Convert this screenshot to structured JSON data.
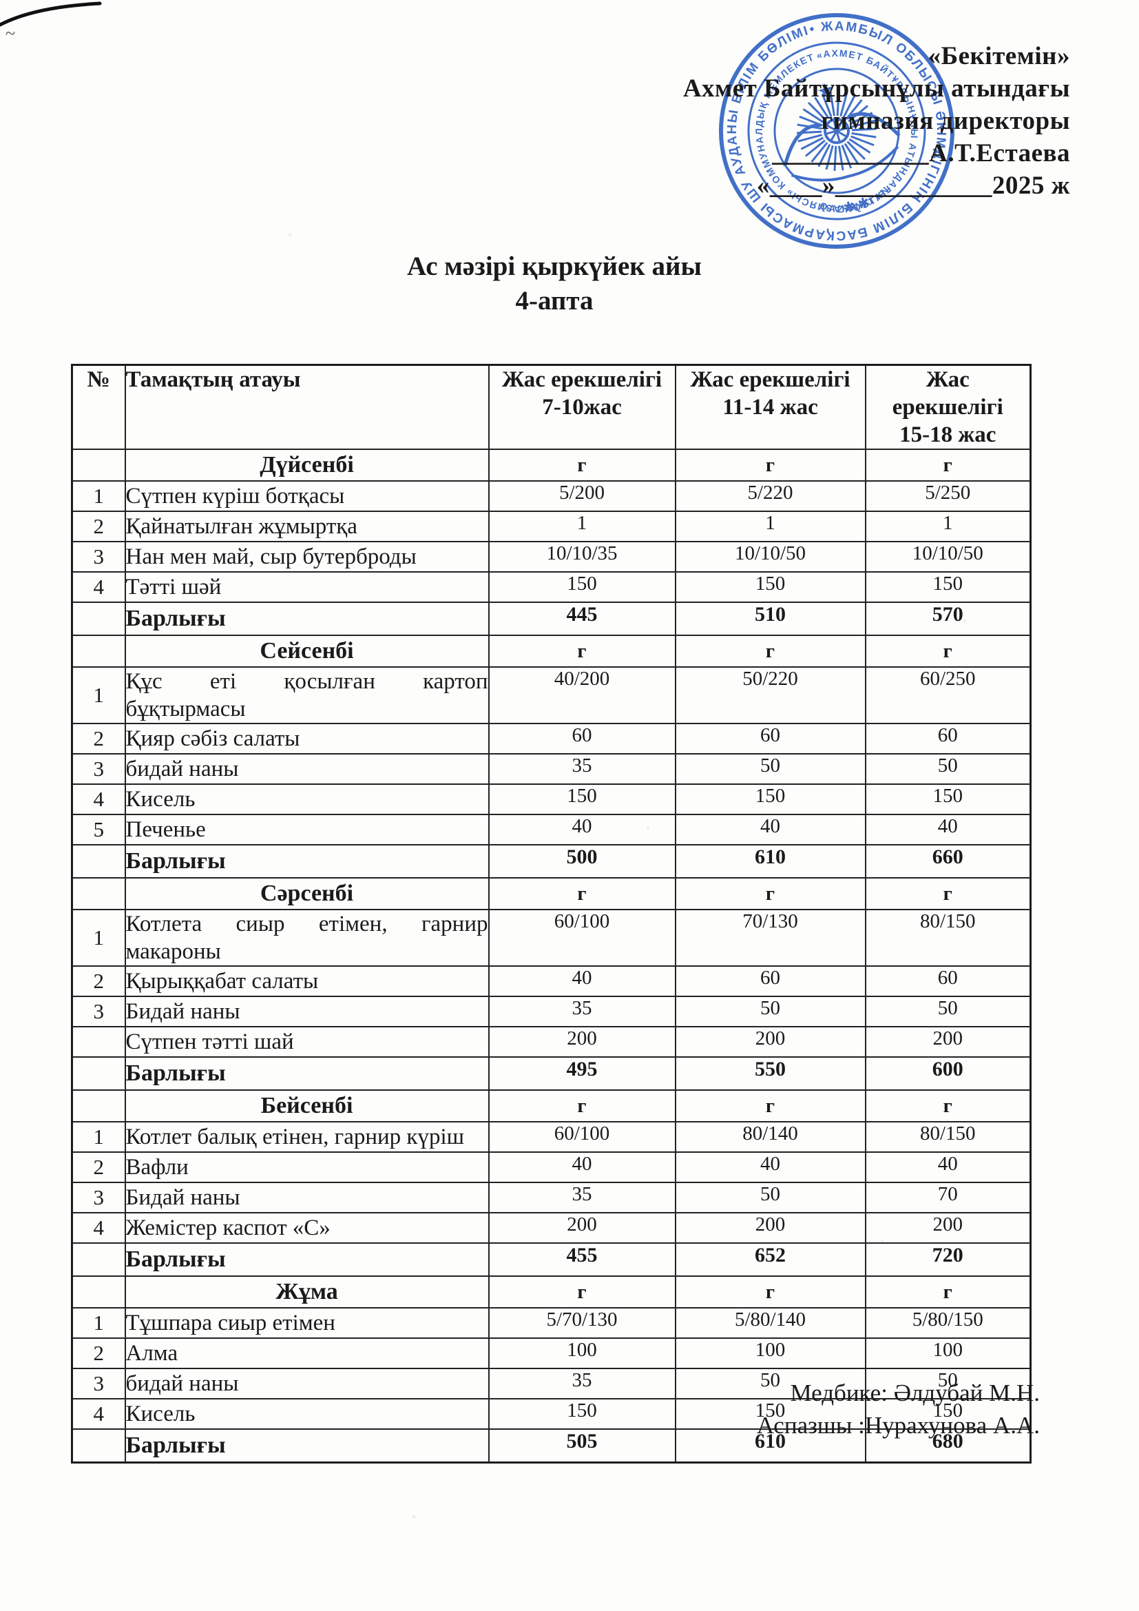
{
  "approval": {
    "line1": "«Бекітемін»",
    "line2": "Ахмет Байтұрсынұлы атындағы",
    "line3": "гимназия директоры",
    "line4": "____________А.Т.Естаева",
    "line5": "«____»____________2025 ж"
  },
  "title": {
    "line1": "Ас мәзірі  қыркүйек айы",
    "line2": "4-апта"
  },
  "stamp": {
    "color": "#2e61c3",
    "outer_text": "• ЖАМБЫЛ ОБЛЫСЫ ӘКІМДІГІНІҢ БІЛІМ БАСҚАРМАСЫ ШУ АУДАНЫ БІЛІМ БӨЛІМІНІҢ • ЖСН ИИН 90 11 26 40 •",
    "org_text": "«АХМЕТ БАЙТҰРСЫНҰЛЫ АТЫНДАҒЫ ГИМНАЗИЯСЫ» КОММУНАЛДЫҚ МЕМЛЕКЕТТІК МЕКЕМЕСІ • ҚАЗАҚСТАН РЕСПУБЛИКАСЫ •",
    "center_text": "QAZAQSTAN",
    "bottom_marks": "✱  ✱"
  },
  "table": {
    "columns": {
      "num": "№",
      "name": "Тамақтың атауы",
      "age1": [
        "Жас ерекшелігі",
        "7-10жас"
      ],
      "age2": [
        "Жас ерекшелігі",
        "11-14 жас"
      ],
      "age3": [
        "Жас",
        "ерекшелігі",
        "15-18 жас"
      ]
    },
    "unit_label": "г",
    "total_label": "Барлығы",
    "days": [
      {
        "day": "Дүйсенбі",
        "rows": [
          {
            "num": "1",
            "name": "Сүтпен күріш ботқасы",
            "v": [
              "5/200",
              "5/220",
              "5/250"
            ]
          },
          {
            "num": "2",
            "name": "Қайнатылған жұмыртқа",
            "v": [
              "1",
              "1",
              "1"
            ]
          },
          {
            "num": "3",
            "name": "Нан мен май, сыр бутерброды",
            "v": [
              "10/10/35",
              "10/10/50",
              "10/10/50"
            ]
          },
          {
            "num": "4",
            "name": "Тәтті шәй",
            "v": [
              "150",
              "150",
              "150"
            ]
          }
        ],
        "total": [
          "445",
          "510",
          "570"
        ]
      },
      {
        "day": "Сейсенбі",
        "rows": [
          {
            "num": "1",
            "name_lines": [
              "Құс еті қосылған картоп",
              "бұқтырмасы"
            ],
            "v": [
              "40/200",
              "50/220",
              "60/250"
            ]
          },
          {
            "num": "2",
            "name": "Қияр сәбіз салаты",
            "v": [
              "60",
              "60",
              "60"
            ]
          },
          {
            "num": "3",
            "name": "бидай наны",
            "v": [
              "35",
              "50",
              "50"
            ]
          },
          {
            "num": "4",
            "name": "Кисель",
            "v": [
              "150",
              "150",
              "150"
            ]
          },
          {
            "num": "5",
            "name": "Печенье",
            "v": [
              "40",
              "40",
              "40"
            ]
          }
        ],
        "total": [
          "500",
          "610",
          "660"
        ]
      },
      {
        "day": "Сәрсенбі",
        "rows": [
          {
            "num": "1",
            "name_lines": [
              "Котлета сиыр етімен, гарнир",
              "макароны"
            ],
            "v": [
              "60/100",
              "70/130",
              "80/150"
            ]
          },
          {
            "num": "2",
            "name": "Қырыққабат салаты",
            "v": [
              "40",
              "60",
              "60"
            ]
          },
          {
            "num": "3",
            "name": "Бидай наны",
            "v": [
              "35",
              "50",
              "50"
            ]
          },
          {
            "num": "",
            "name": "Сүтпен тәтті шай",
            "v": [
              "200",
              "200",
              "200"
            ]
          }
        ],
        "total": [
          "495",
          "550",
          "600"
        ]
      },
      {
        "day": "Бейсенбі",
        "rows": [
          {
            "num": "1",
            "name": "Котлет балық етінен, гарнир күріш",
            "v": [
              "60/100",
              "80/140",
              "80/150"
            ]
          },
          {
            "num": "2",
            "name": "Вафли",
            "v": [
              "40",
              "40",
              "40"
            ]
          },
          {
            "num": "3",
            "name": "Бидай наны",
            "v": [
              "35",
              "50",
              "70"
            ]
          },
          {
            "num": "4",
            "name": "Жемістер каспот «С»",
            "v": [
              "200",
              "200",
              "200"
            ]
          }
        ],
        "total": [
          "455",
          "652",
          "720"
        ]
      },
      {
        "day": "Жұма",
        "rows": [
          {
            "num": "1",
            "name": "Тұшпара сиыр етімен",
            "v": [
              "5/70/130",
              "5/80/140",
              "5/80/150"
            ]
          },
          {
            "num": "2",
            "name": "Алма",
            "v": [
              "100",
              "100",
              "100"
            ]
          },
          {
            "num": "3",
            "name": " бидай наны",
            "v": [
              "35",
              "50",
              "50"
            ]
          },
          {
            "num": "4",
            "name": "Кисель",
            "v": [
              "150",
              "150",
              "150"
            ]
          }
        ],
        "total": [
          "505",
          "610",
          "680"
        ]
      }
    ]
  },
  "footer": {
    "nurse": "Медбике: Әлдубай М.Н.",
    "cook": "Аспазшы :Нурахунова А.А."
  }
}
